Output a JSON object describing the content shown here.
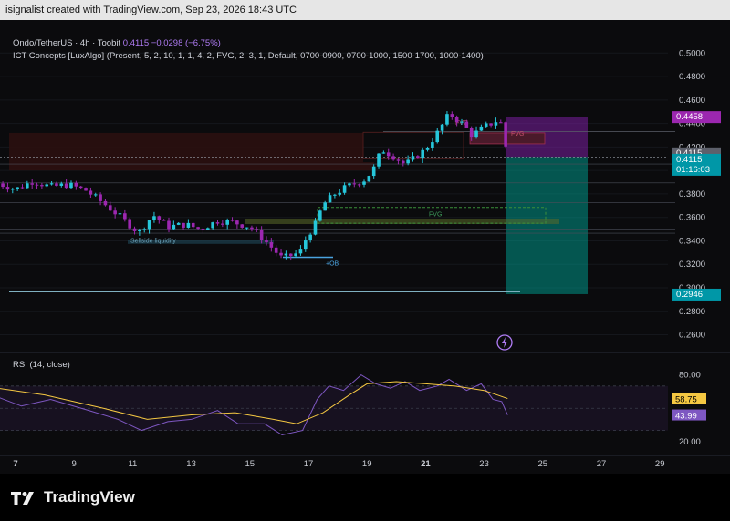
{
  "header": {
    "credit": "isignalist created with TradingView.com, Sep 23, 2026 18:43 UTC"
  },
  "legend": {
    "symbol": "Ondo/TetherUS · 4h · Toobit",
    "price": "0.4115",
    "change": "−0.0298 (−6.75%)",
    "indicator": "ICT Concepts [LuxAlgo] (Present, 5, 2, 10, 1, 1, 4, 2, FVG, 2, 3, 1, Default, 0700-0900, 0700-1000, 1500-1700, 1000-1400)"
  },
  "rsi_legend": "RSI (14, close)",
  "colors": {
    "up": "#26c6da",
    "down": "#9c27b0",
    "rsi": "#7e57c2",
    "rsi_ma": "#f5c842",
    "tp_zone": "#009688",
    "sl_zone": "#7b1fa2"
  },
  "chart_data": {
    "type": "candlestick",
    "x_axis": {
      "ticks": [
        "7",
        "9",
        "11",
        "13",
        "15",
        "17",
        "19",
        "21",
        "23",
        "25",
        "27",
        "29"
      ]
    },
    "price_axis": {
      "ticks": [
        "0.5000",
        "0.4800",
        "0.4600",
        "0.4400",
        "0.4200",
        "0.4000",
        "0.3800",
        "0.3600",
        "0.3400",
        "0.3200",
        "0.3000",
        "0.2800",
        "0.2600"
      ],
      "range": [
        0.248,
        0.508
      ]
    },
    "labels": {
      "last_price": "0.4115",
      "countdown": "01:16:03",
      "target_top": "0.4458",
      "target_bottom": "0.2946"
    },
    "annotations": [
      "FVG",
      "FVG",
      "FVG",
      "+OB",
      "Sellside liquidity"
    ],
    "candles_anchor": [
      [
        6.4,
        0.389
      ],
      [
        7.0,
        0.384
      ],
      [
        7.6,
        0.391
      ],
      [
        8.2,
        0.386
      ],
      [
        8.8,
        0.388
      ],
      [
        9.4,
        0.383
      ],
      [
        10.0,
        0.372
      ],
      [
        10.6,
        0.36
      ],
      [
        11.2,
        0.347
      ],
      [
        11.7,
        0.362
      ],
      [
        12.2,
        0.352
      ],
      [
        12.8,
        0.354
      ],
      [
        13.3,
        0.35
      ],
      [
        13.9,
        0.357
      ],
      [
        14.4,
        0.356
      ],
      [
        15.0,
        0.352
      ],
      [
        15.6,
        0.338
      ],
      [
        16.1,
        0.325
      ],
      [
        16.7,
        0.33
      ],
      [
        17.0,
        0.346
      ],
      [
        17.2,
        0.352
      ],
      [
        17.5,
        0.371
      ],
      [
        17.9,
        0.38
      ],
      [
        18.3,
        0.386
      ],
      [
        18.9,
        0.392
      ],
      [
        19.2,
        0.4
      ],
      [
        19.5,
        0.418
      ],
      [
        19.9,
        0.412
      ],
      [
        20.3,
        0.405
      ],
      [
        20.7,
        0.412
      ],
      [
        21.0,
        0.418
      ],
      [
        21.4,
        0.432
      ],
      [
        21.8,
        0.448
      ],
      [
        22.2,
        0.441
      ],
      [
        22.6,
        0.43
      ],
      [
        23.0,
        0.437
      ],
      [
        23.4,
        0.442
      ],
      [
        23.6,
        0.44
      ],
      [
        23.8,
        0.411
      ]
    ],
    "rsi": {
      "ticks": [
        "80.00",
        "20.00"
      ],
      "range": [
        10,
        92
      ],
      "value": "43.99",
      "ma_value": "58.75"
    },
    "title": "",
    "xlabel": "",
    "ylabel": ""
  }
}
